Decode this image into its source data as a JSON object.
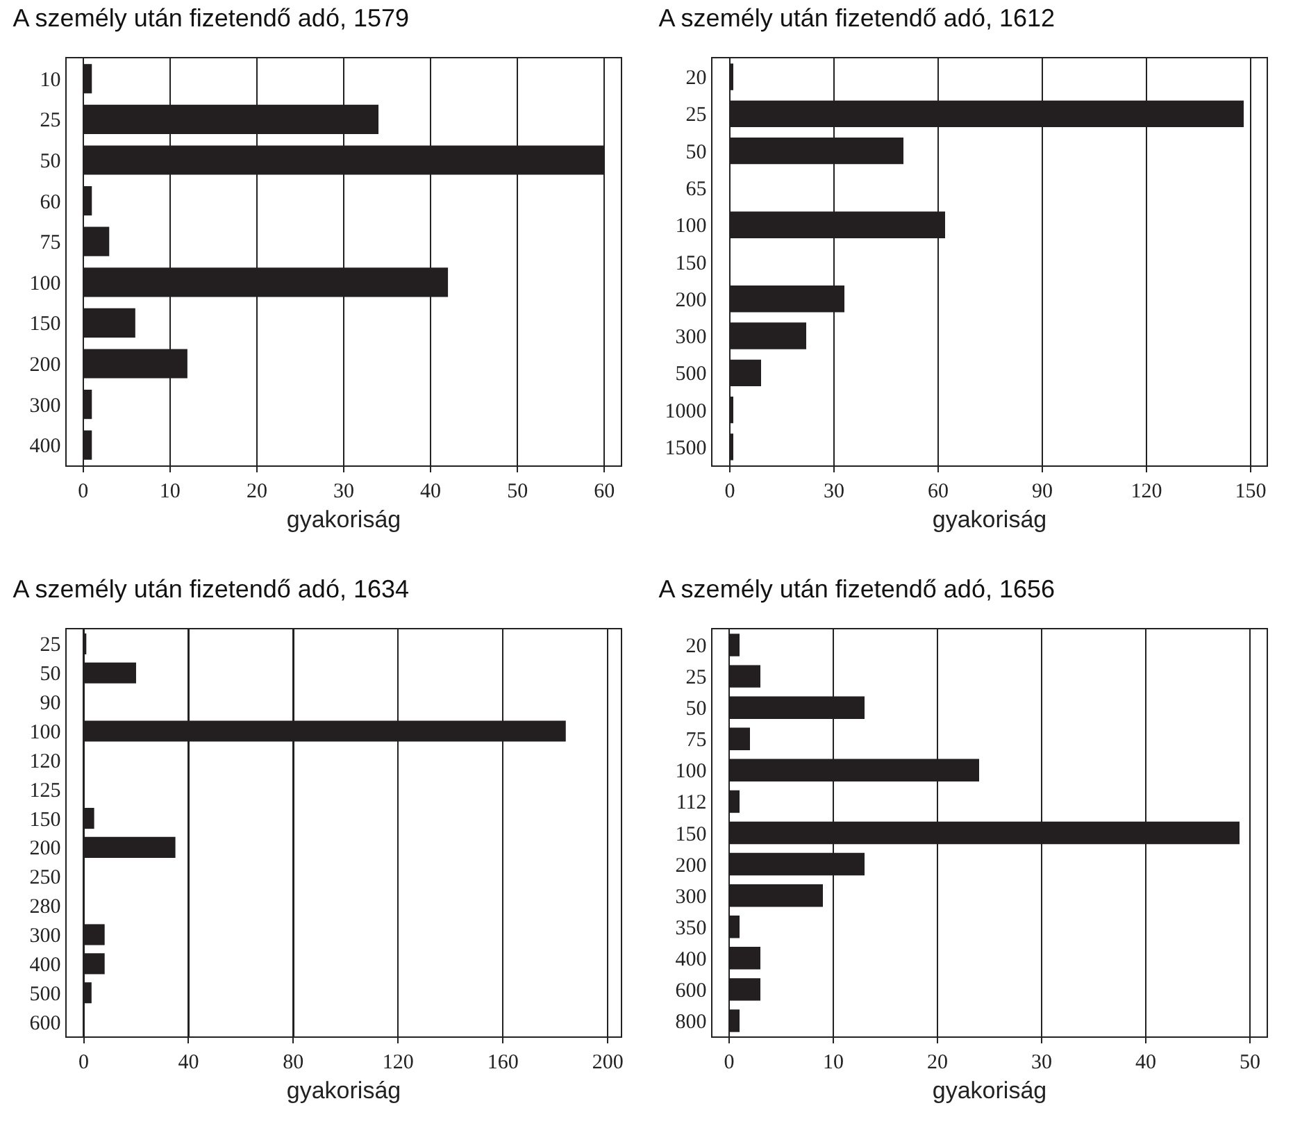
{
  "chart_data": [
    {
      "type": "bar",
      "orientation": "horizontal",
      "title": "A személy után fizetendő adó, 1579",
      "xlabel": "gyakoriság",
      "categories": [
        "10",
        "25",
        "50",
        "60",
        "75",
        "100",
        "150",
        "200",
        "300",
        "400"
      ],
      "values": [
        1,
        34,
        60,
        1,
        3,
        42,
        6,
        12,
        1,
        1
      ],
      "color": "#231f20",
      "xlim": [
        -1.9,
        61.9
      ],
      "xticks": [
        0,
        10,
        20,
        30,
        40,
        50,
        60
      ],
      "grid": "x"
    },
    {
      "type": "bar",
      "orientation": "horizontal",
      "title": "A személy után fizetendő adó, 1612",
      "xlabel": "gyakoriság",
      "categories": [
        "20",
        "25",
        "50",
        "65",
        "100",
        "150",
        "200",
        "300",
        "500",
        "1000",
        "1500"
      ],
      "values": [
        1,
        148,
        50,
        0,
        62,
        0,
        33,
        22,
        9,
        1,
        1
      ],
      "color": "#231f20",
      "xlim": [
        -5,
        154.6
      ],
      "xticks": [
        0,
        30,
        60,
        90,
        120,
        150
      ],
      "grid": "x"
    },
    {
      "type": "bar",
      "orientation": "horizontal",
      "title": "A személy után fizetendő adó, 1634",
      "xlabel": "gyakoriság",
      "categories": [
        "25",
        "50",
        "90",
        "100",
        "120",
        "125",
        "150",
        "200",
        "250",
        "280",
        "300",
        "400",
        "500",
        "600"
      ],
      "values": [
        1,
        20,
        0,
        184,
        0,
        0,
        4,
        35,
        0,
        0,
        8,
        8,
        3,
        0
      ],
      "color": "#231f20",
      "xlim": [
        -6.5,
        205
      ],
      "xticks": [
        0,
        40,
        80,
        120,
        160,
        200
      ],
      "grid": "x"
    },
    {
      "type": "bar",
      "orientation": "horizontal",
      "title": "A személy után fizetendő adó, 1656",
      "xlabel": "gyakoriság",
      "categories": [
        "20",
        "25",
        "50",
        "75",
        "100",
        "112",
        "150",
        "200",
        "300",
        "350",
        "400",
        "600",
        "800"
      ],
      "values": [
        1,
        3,
        13,
        2,
        24,
        1,
        49,
        13,
        9,
        1,
        3,
        3,
        1
      ],
      "color": "#231f20",
      "xlim": [
        -1.6,
        51.6
      ],
      "xticks": [
        0,
        10,
        20,
        30,
        40,
        50
      ],
      "grid": "x"
    }
  ]
}
